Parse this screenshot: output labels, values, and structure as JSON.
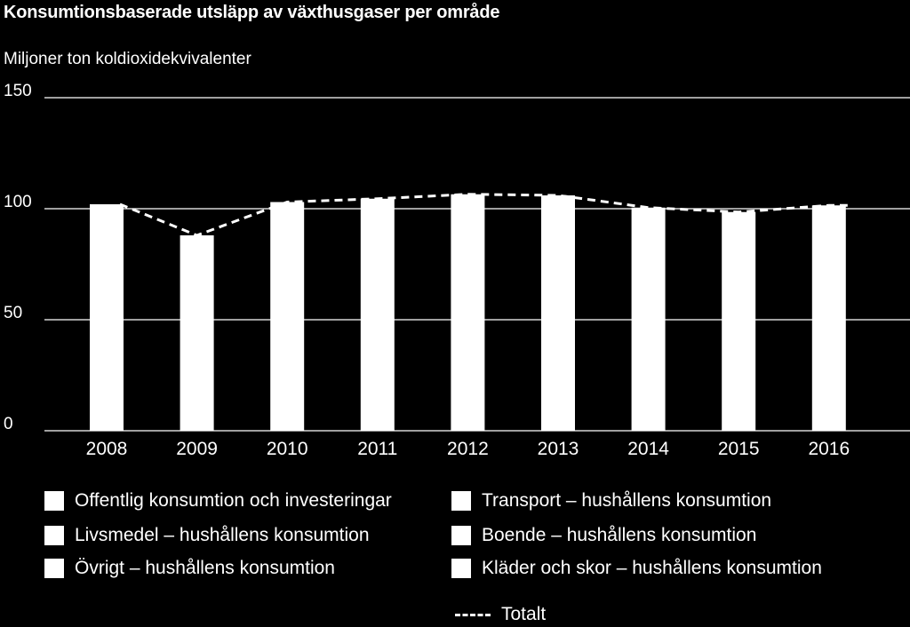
{
  "chart_data": {
    "type": "bar",
    "title": "Konsumtionsbaserade utsläpp av växthusgaser per område",
    "ylabel": "Miljoner ton koldioxidekvivalenter",
    "xlabel": "",
    "ylim": [
      0,
      150
    ],
    "yticks": [
      0,
      50,
      100,
      150
    ],
    "grid": true,
    "stacked": true,
    "categories": [
      "2008",
      "2009",
      "2010",
      "2011",
      "2012",
      "2013",
      "2014",
      "2015",
      "2016"
    ],
    "series": [
      {
        "name": "Offentlig konsumtion och investeringar",
        "color": "#ffffff"
      },
      {
        "name": "Livsmedel – hushållens konsumtion",
        "color": "#ffffff"
      },
      {
        "name": "Övrigt – hushållens konsumtion",
        "color": "#ffffff"
      },
      {
        "name": "Transport – hushållens konsumtion",
        "color": "#ffffff"
      },
      {
        "name": "Boende – hushållens konsumtion",
        "color": "#ffffff"
      },
      {
        "name": "Kläder och skor – hushållens konsumtion",
        "color": "#ffffff"
      }
    ],
    "bar_totals": [
      102,
      88,
      103,
      104.5,
      106.5,
      106,
      100.5,
      98.5,
      101.5
    ],
    "line": {
      "name": "Totalt",
      "style": "dashed",
      "color": "#ffffff",
      "values": [
        102,
        88,
        103,
        104.5,
        106.5,
        106,
        100.5,
        98.5,
        101.5
      ]
    },
    "legend_placement": "bottom"
  }
}
